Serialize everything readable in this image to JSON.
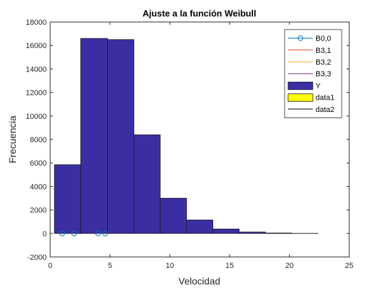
{
  "chart_data": {
    "type": "bar",
    "title": "Ajuste a la función Weibull",
    "xlabel": "Velocidad",
    "ylabel": "Frecuencia",
    "xlim": [
      0,
      25
    ],
    "ylim": [
      -2000,
      18000
    ],
    "xticks": [
      0,
      5,
      10,
      15,
      20,
      25
    ],
    "xtick_labels": [
      "0",
      "5",
      "10",
      "15",
      "20",
      "25"
    ],
    "yticks": [
      -2000,
      0,
      2000,
      4000,
      6000,
      8000,
      10000,
      12000,
      14000,
      16000,
      18000
    ],
    "ytick_labels": [
      "-2000",
      "0",
      "2000",
      "4000",
      "6000",
      "8000",
      "10000",
      "12000",
      "14000",
      "16000",
      "18000"
    ],
    "grid": false,
    "legend_position": "top-right",
    "histogram": {
      "name": "Y",
      "color": "#3b2ea3",
      "bins": [
        {
          "x0": 0.35,
          "x1": 2.55,
          "value": 5850
        },
        {
          "x0": 2.55,
          "x1": 4.8,
          "value": 16600
        },
        {
          "x0": 4.8,
          "x1": 7.0,
          "value": 16500
        },
        {
          "x0": 7.0,
          "x1": 9.2,
          "value": 8400
        },
        {
          "x0": 9.2,
          "x1": 11.4,
          "value": 3000
        },
        {
          "x0": 11.4,
          "x1": 13.6,
          "value": 1150
        },
        {
          "x0": 13.6,
          "x1": 15.8,
          "value": 380
        },
        {
          "x0": 15.8,
          "x1": 18.0,
          "value": 120
        },
        {
          "x0": 18.0,
          "x1": 20.2,
          "value": 40
        },
        {
          "x0": 20.2,
          "x1": 22.4,
          "value": 10
        }
      ]
    },
    "series": [
      {
        "name": "B0,0",
        "type": "markers",
        "color": "#0072bd",
        "x": [
          1.0,
          2.0,
          4.0,
          4.6
        ],
        "y": [
          0,
          0,
          0,
          0
        ]
      },
      {
        "name": "B3,1",
        "type": "line",
        "color": "#d95319",
        "x": [],
        "y": []
      },
      {
        "name": "B3,2",
        "type": "line",
        "color": "#edb120",
        "x": [],
        "y": []
      },
      {
        "name": "B3,3",
        "type": "line",
        "color": "#7e2f8e",
        "x": [],
        "y": []
      },
      {
        "name": "data1",
        "type": "bar",
        "color": "#ffff00",
        "x": [],
        "y": []
      },
      {
        "name": "data2",
        "type": "line",
        "color": "#000000",
        "x": [],
        "y": []
      }
    ],
    "legend": [
      {
        "label": "B0,0",
        "kind": "line-marker",
        "color": "#0072bd"
      },
      {
        "label": "B3,1",
        "kind": "line",
        "color": "#d95319"
      },
      {
        "label": "B3,2",
        "kind": "line",
        "color": "#edb120"
      },
      {
        "label": "B3,3",
        "kind": "line",
        "color": "#7e2f8e"
      },
      {
        "label": "Y",
        "kind": "patch",
        "color": "#3b2ea3"
      },
      {
        "label": "data1",
        "kind": "patch",
        "color": "#ffff00"
      },
      {
        "label": "data2",
        "kind": "line",
        "color": "#000000"
      }
    ]
  }
}
